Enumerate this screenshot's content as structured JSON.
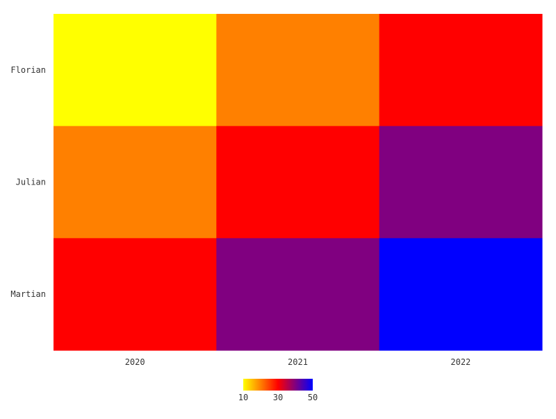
{
  "chart_data": {
    "type": "heatmap",
    "title": "",
    "xlabel": "",
    "ylabel": "",
    "x_categories": [
      "2020",
      "2021",
      "2022"
    ],
    "y_categories": [
      "Florian",
      "Julian",
      "Martian"
    ],
    "values": [
      [
        10,
        20,
        30
      ],
      [
        20,
        30,
        40
      ],
      [
        30,
        40,
        50
      ]
    ],
    "grid": false,
    "colorbar": {
      "min": 10,
      "max": 50,
      "ticks": [
        "10",
        "30",
        "50"
      ],
      "stops": [
        {
          "value": 10,
          "color": "#ffff00"
        },
        {
          "value": 20,
          "color": "#ff8000"
        },
        {
          "value": 30,
          "color": "#ff0000"
        },
        {
          "value": 40,
          "color": "#800080"
        },
        {
          "value": 50,
          "color": "#0000ff"
        }
      ],
      "placement": "bottom-center"
    }
  }
}
